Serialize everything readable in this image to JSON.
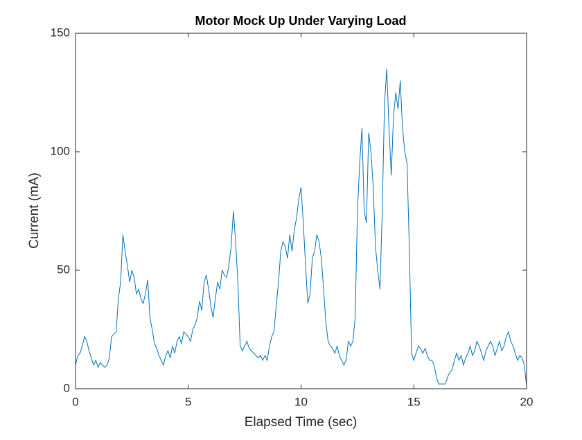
{
  "chart_data": {
    "type": "line",
    "title": "Motor Mock Up Under Varying Load",
    "xlabel": "Elapsed Time (sec)",
    "ylabel": "Current (mA)",
    "color": "#0072bd",
    "xlim": [
      0,
      20
    ],
    "xticks": [
      0,
      5,
      10,
      15,
      20
    ],
    "ylim": [
      0,
      150
    ],
    "yticks": [
      0,
      50,
      100,
      150
    ],
    "x": [
      0,
      0.1,
      0.2,
      0.3,
      0.4,
      0.5,
      0.6,
      0.7,
      0.8,
      0.9,
      1,
      1.1,
      1.2,
      1.3,
      1.4,
      1.5,
      1.6,
      1.7,
      1.8,
      1.9,
      2,
      2.1,
      2.2,
      2.3,
      2.4,
      2.5,
      2.6,
      2.7,
      2.8,
      2.9,
      3,
      3.1,
      3.2,
      3.3,
      3.4,
      3.5,
      3.6,
      3.7,
      3.8,
      3.9,
      4,
      4.1,
      4.2,
      4.3,
      4.4,
      4.5,
      4.6,
      4.7,
      4.8,
      4.9,
      5,
      5.1,
      5.2,
      5.3,
      5.4,
      5.5,
      5.6,
      5.7,
      5.8,
      5.9,
      6,
      6.1,
      6.2,
      6.3,
      6.4,
      6.5,
      6.6,
      6.7,
      6.8,
      6.9,
      7,
      7.1,
      7.2,
      7.3,
      7.4,
      7.5,
      7.6,
      7.7,
      7.8,
      7.9,
      8,
      8.1,
      8.2,
      8.3,
      8.4,
      8.5,
      8.6,
      8.7,
      8.8,
      8.9,
      9,
      9.1,
      9.2,
      9.3,
      9.4,
      9.5,
      9.6,
      9.7,
      9.8,
      9.9,
      10,
      10.1,
      10.2,
      10.3,
      10.4,
      10.5,
      10.6,
      10.7,
      10.8,
      10.9,
      11,
      11.1,
      11.2,
      11.3,
      11.4,
      11.5,
      11.6,
      11.7,
      11.8,
      11.9,
      12,
      12.1,
      12.2,
      12.3,
      12.4,
      12.5,
      12.6,
      12.7,
      12.8,
      12.9,
      13,
      13.1,
      13.2,
      13.3,
      13.4,
      13.5,
      13.6,
      13.7,
      13.8,
      13.9,
      14,
      14.1,
      14.2,
      14.3,
      14.4,
      14.5,
      14.6,
      14.7,
      14.8,
      14.9,
      15,
      15.1,
      15.2,
      15.3,
      15.4,
      15.5,
      15.6,
      15.7,
      15.8,
      15.9,
      16,
      16.1,
      16.2,
      16.3,
      16.4,
      16.5,
      16.6,
      16.7,
      16.8,
      16.9,
      17,
      17.1,
      17.2,
      17.3,
      17.4,
      17.5,
      17.6,
      17.7,
      17.8,
      17.9,
      18,
      18.1,
      18.2,
      18.3,
      18.4,
      18.5,
      18.6,
      18.7,
      18.8,
      18.9,
      19,
      19.1,
      19.2,
      19.3,
      19.4,
      19.5,
      19.6,
      19.7,
      19.8,
      19.9,
      20
    ],
    "values": [
      10,
      14,
      15,
      18,
      22,
      20,
      16,
      13,
      10,
      12,
      9,
      11,
      10,
      9,
      10,
      13,
      22,
      23,
      24,
      38,
      45,
      65,
      58,
      52,
      45,
      50,
      47,
      40,
      42,
      38,
      36,
      40,
      46,
      30,
      25,
      19,
      17,
      14,
      12,
      10,
      14,
      16,
      13,
      18,
      15,
      20,
      22,
      19,
      24,
      23,
      22,
      20,
      25,
      27,
      30,
      37,
      33,
      45,
      48,
      42,
      35,
      30,
      38,
      45,
      42,
      50,
      48,
      47,
      52,
      60,
      75,
      62,
      45,
      18,
      16,
      18,
      20,
      17,
      16,
      15,
      14,
      13,
      14,
      12,
      14,
      12,
      18,
      22,
      24,
      35,
      45,
      58,
      62,
      60,
      55,
      65,
      58,
      67,
      72,
      80,
      85,
      70,
      52,
      36,
      40,
      55,
      58,
      65,
      62,
      55,
      42,
      28,
      20,
      18,
      17,
      15,
      18,
      14,
      12,
      10,
      12,
      20,
      18,
      20,
      30,
      75,
      95,
      110,
      75,
      70,
      108,
      100,
      85,
      60,
      50,
      42,
      75,
      120,
      135,
      110,
      90,
      115,
      125,
      118,
      130,
      110,
      100,
      95,
      60,
      15,
      12,
      15,
      18,
      17,
      15,
      17,
      14,
      12,
      12,
      10,
      5,
      2,
      2,
      2,
      2,
      5,
      7,
      8,
      12,
      15,
      12,
      14,
      10,
      13,
      15,
      18,
      14,
      16,
      20,
      18,
      15,
      12,
      16,
      18,
      20,
      18,
      14,
      17,
      20,
      16,
      18,
      22,
      24,
      20,
      18,
      15,
      12,
      14,
      13,
      10,
      1
    ]
  }
}
